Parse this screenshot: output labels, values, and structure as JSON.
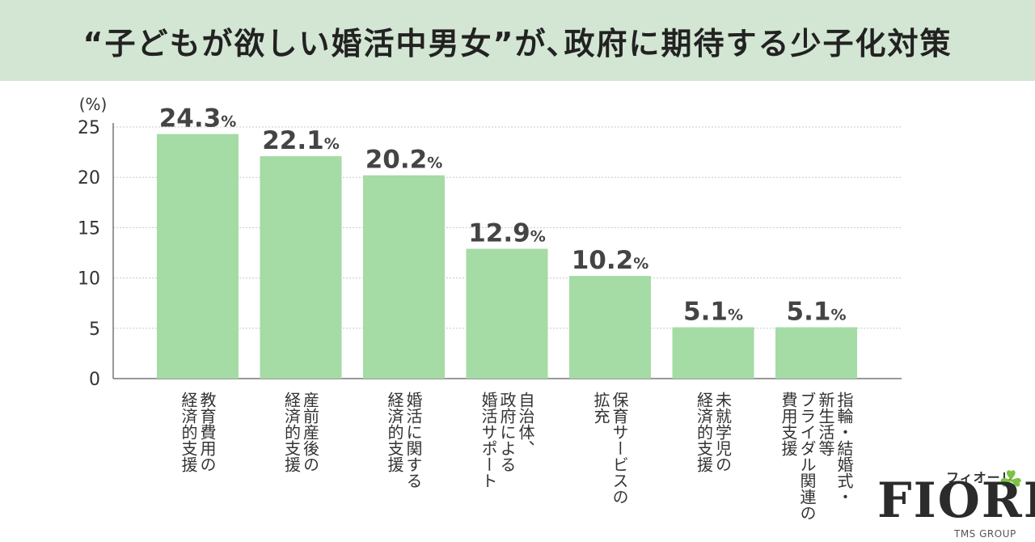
{
  "title": "“子どもが欲しい婚活中男女”が､政府に期待する少子化対策",
  "chart_data": {
    "type": "bar",
    "unit_label": "(%)",
    "ylim": [
      0,
      25
    ],
    "yticks": [
      0,
      5,
      10,
      15,
      20,
      25
    ],
    "grid": true,
    "bar_color": "#a5dba4",
    "value_suffix": "%",
    "categories": [
      [
        "教育費用の",
        "経済的支援"
      ],
      [
        "産前産後の",
        "経済的支援"
      ],
      [
        "婚活に関する",
        "経済的支援"
      ],
      [
        "自治体、",
        "政府による",
        "婚活サポート"
      ],
      [
        "保育サービスの",
        "拡充"
      ],
      [
        "未就学児の",
        "経済的支援"
      ],
      [
        "指輪・結婚式・",
        "新生活等",
        "ブライダル関連の",
        "費用支援"
      ]
    ],
    "values": [
      24.3,
      22.1,
      20.2,
      12.9,
      10.2,
      5.1,
      5.1
    ],
    "value_labels": [
      "24.3",
      "22.1",
      "20.2",
      "12.9",
      "10.2",
      "5.1",
      "5.1"
    ]
  },
  "brand": {
    "kana": "フィオーレ",
    "name": "FIORE",
    "group": "TMS GROUP",
    "icon": "clover-icon"
  }
}
